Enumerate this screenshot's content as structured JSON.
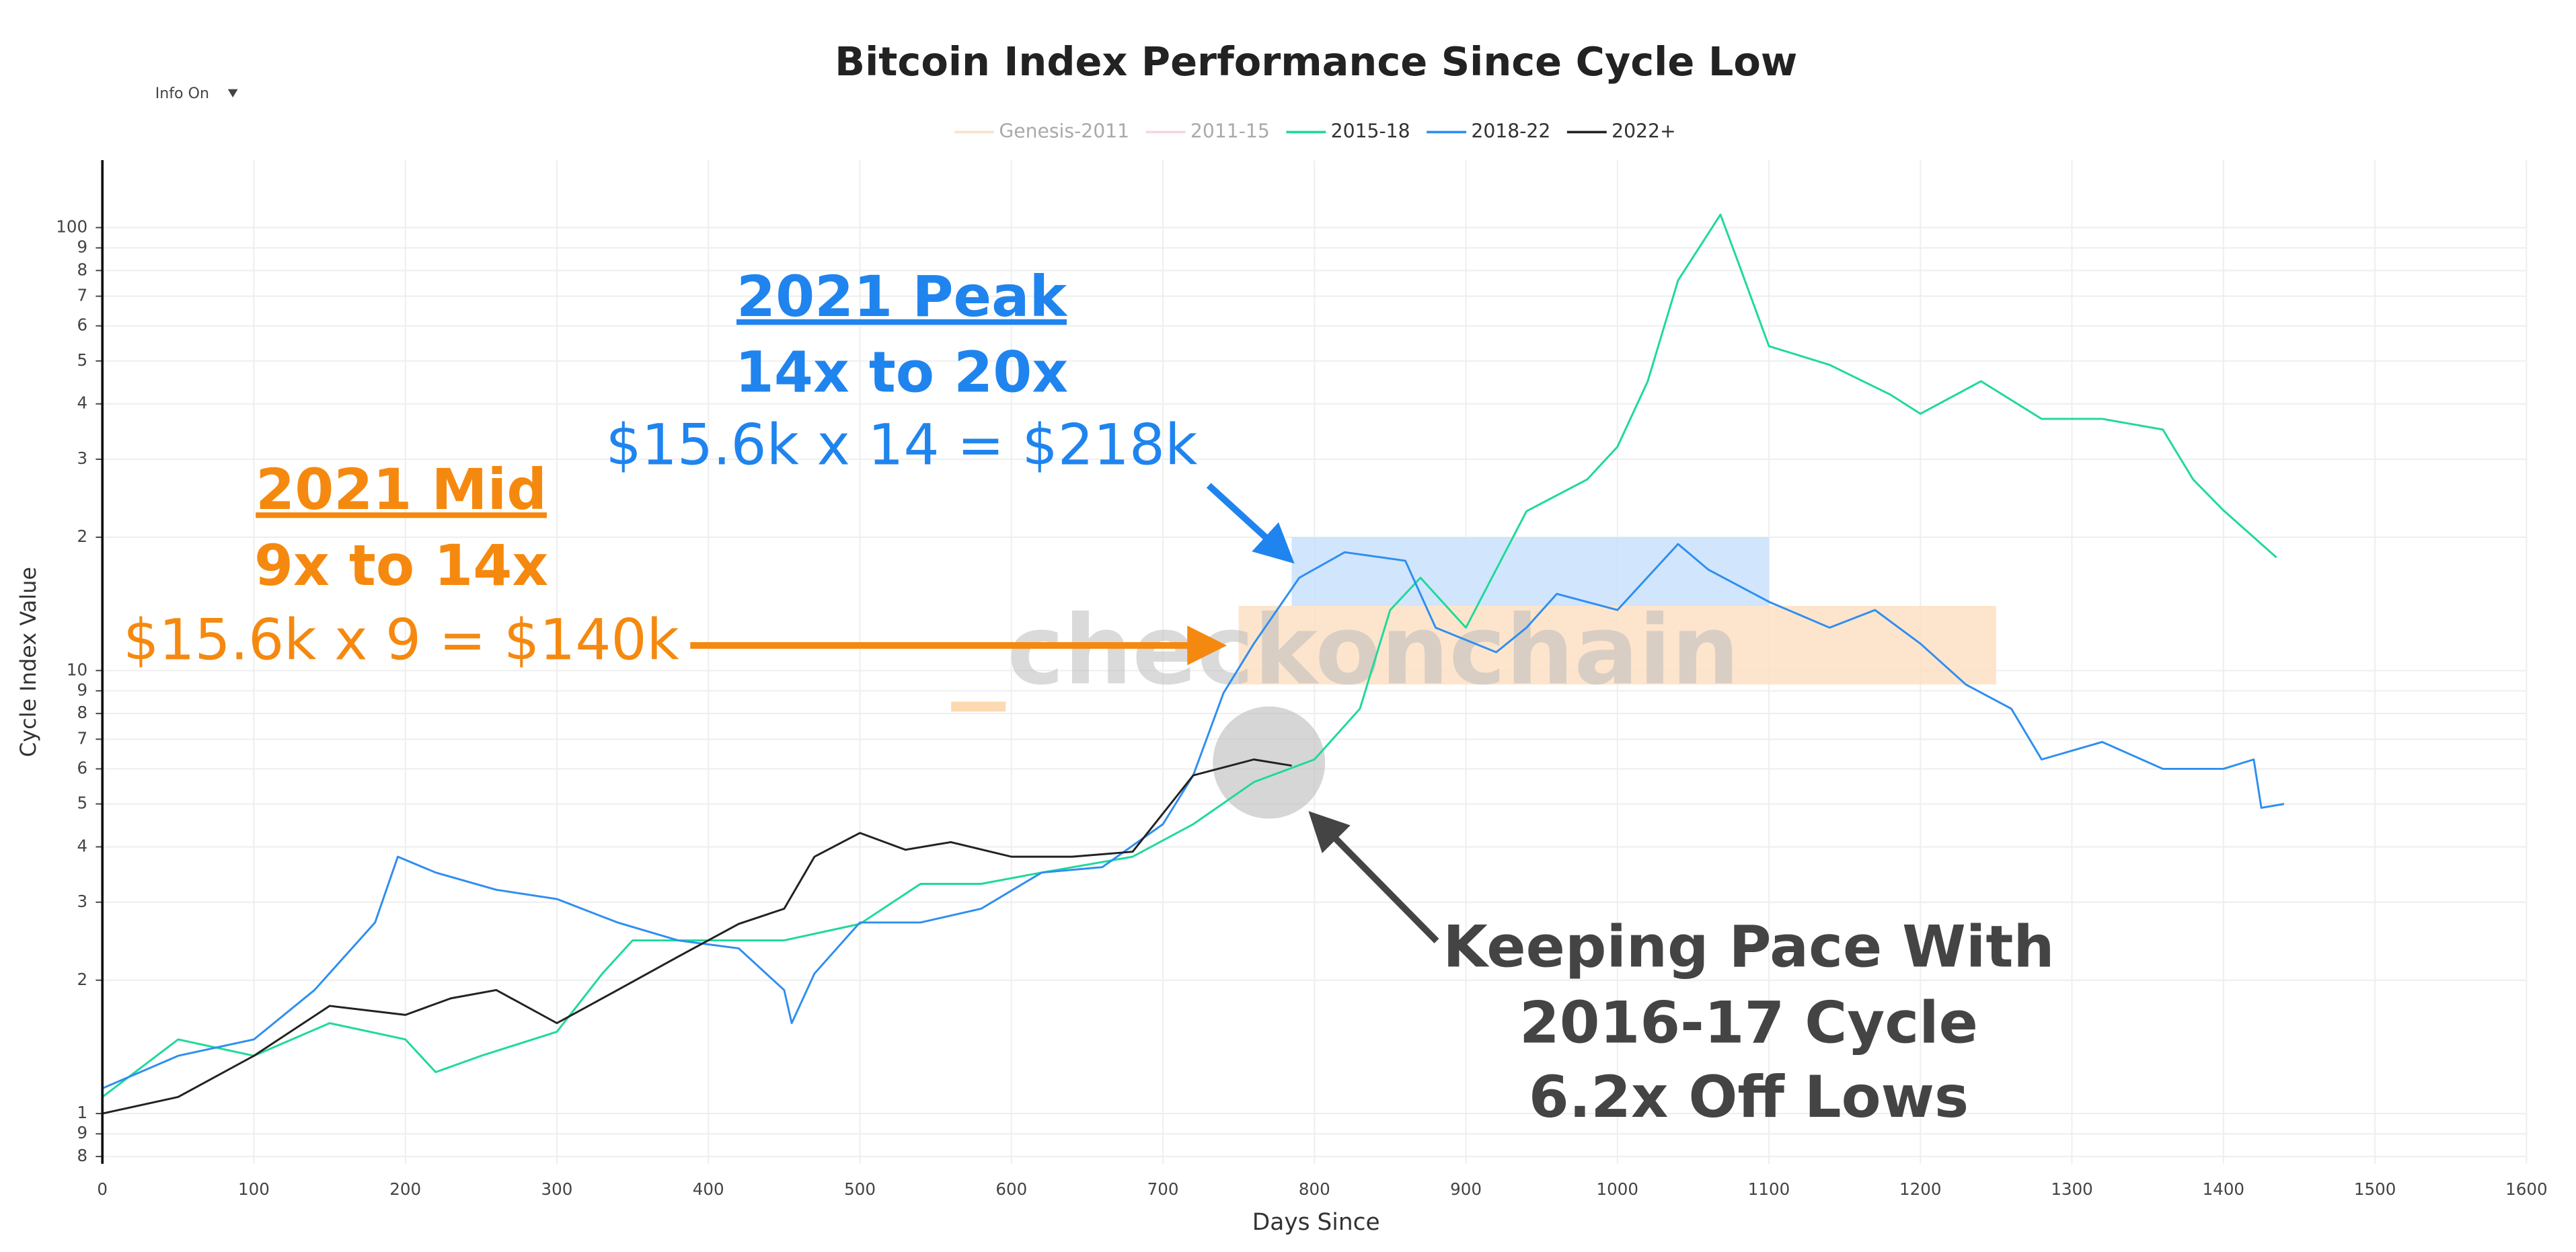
{
  "chart_data": {
    "type": "line",
    "title": "Bitcoin Index Performance Since Cycle Low",
    "control": "Info On",
    "xlabel": "Days Since",
    "ylabel": "Cycle Index Value",
    "watermark": "checkonchain",
    "log_y": true,
    "grid": true,
    "legend": "top",
    "xlim": [
      0,
      1600
    ],
    "xticks": [
      0,
      100,
      200,
      300,
      400,
      500,
      600,
      700,
      800,
      900,
      1000,
      1100,
      1200,
      1300,
      1400,
      1500,
      1600
    ],
    "ylim": [
      0.77,
      142
    ],
    "yticks": [
      {
        "value": 0.8,
        "label": "8"
      },
      {
        "value": 0.9,
        "label": "9"
      },
      1,
      2,
      3,
      4,
      5,
      6,
      7,
      8,
      9,
      10,
      {
        "value": 20,
        "label": "2"
      },
      {
        "value": 30,
        "label": "3"
      },
      {
        "value": 40,
        "label": "4"
      },
      {
        "value": 50,
        "label": "5"
      },
      {
        "value": 60,
        "label": "6"
      },
      {
        "value": 70,
        "label": "7"
      },
      {
        "value": 80,
        "label": "8"
      },
      {
        "value": 90,
        "label": "9"
      },
      100
    ],
    "series": [
      {
        "name": "Genesis-2011",
        "color": "#f5cfa6",
        "visible": false,
        "x": [],
        "values": []
      },
      {
        "name": "2011-15",
        "color": "#f2b8cc",
        "visible": false,
        "x": [],
        "values": []
      },
      {
        "name": "2015-18",
        "color": "#1ed99a",
        "visible": true,
        "x": [
          0,
          50,
          100,
          150,
          200,
          220,
          250,
          300,
          330,
          350,
          400,
          450,
          500,
          540,
          580,
          620,
          680,
          720,
          760,
          800,
          830,
          850,
          870,
          900,
          940,
          980,
          1000,
          1020,
          1040,
          1068,
          1080,
          1100,
          1140,
          1180,
          1200,
          1240,
          1280,
          1320,
          1360,
          1380,
          1400,
          1435
        ],
        "values": [
          1.09,
          1.47,
          1.35,
          1.6,
          1.47,
          1.24,
          1.35,
          1.53,
          2.07,
          2.46,
          2.46,
          2.46,
          2.68,
          3.3,
          3.3,
          3.5,
          3.8,
          4.5,
          5.6,
          6.3,
          8.2,
          13.7,
          16.2,
          12.5,
          22.9,
          27,
          32,
          45,
          76,
          107,
          83,
          54,
          49,
          42,
          38,
          45,
          37,
          37,
          35,
          27,
          23,
          18
        ]
      },
      {
        "name": "2018-22",
        "color": "#2e8ef0",
        "visible": true,
        "x": [
          0,
          50,
          100,
          140,
          180,
          195,
          220,
          260,
          300,
          340,
          380,
          420,
          450,
          455,
          470,
          500,
          540,
          580,
          620,
          660,
          700,
          720,
          740,
          760,
          790,
          820,
          860,
          880,
          920,
          940,
          960,
          1000,
          1040,
          1060,
          1100,
          1140,
          1170,
          1200,
          1230,
          1260,
          1280,
          1320,
          1360,
          1400,
          1420,
          1425,
          1440
        ],
        "values": [
          1.14,
          1.35,
          1.47,
          1.9,
          2.7,
          3.8,
          3.5,
          3.2,
          3.05,
          2.7,
          2.46,
          2.36,
          1.9,
          1.6,
          2.07,
          2.7,
          2.7,
          2.9,
          3.5,
          3.6,
          4.5,
          5.8,
          8.9,
          11.5,
          16.2,
          18.5,
          17.7,
          12.5,
          11,
          12.5,
          14.9,
          13.7,
          19.3,
          16.9,
          14.3,
          12.5,
          13.7,
          11.5,
          9.3,
          8.2,
          6.3,
          6.9,
          6,
          6,
          6.3,
          4.9,
          5
        ]
      },
      {
        "name": "2022+",
        "color": "#222222",
        "visible": true,
        "x": [
          0,
          50,
          100,
          150,
          200,
          230,
          260,
          300,
          340,
          380,
          420,
          450,
          470,
          500,
          530,
          560,
          600,
          640,
          680,
          720,
          760,
          785
        ],
        "values": [
          1,
          1.09,
          1.35,
          1.75,
          1.67,
          1.82,
          1.9,
          1.6,
          1.9,
          2.26,
          2.68,
          2.9,
          3.8,
          4.3,
          3.94,
          4.1,
          3.8,
          3.8,
          3.9,
          5.8,
          6.3,
          6.1
        ]
      }
    ],
    "bands": [
      {
        "x": [
          785,
          1100
        ],
        "y": [
          14,
          20
        ],
        "color": "#c9e0fb"
      },
      {
        "x": [
          750,
          1250
        ],
        "y": [
          9.3,
          14
        ],
        "color": "#fde1c4"
      }
    ],
    "highlight": {
      "x": 770,
      "y": 6.2
    },
    "annotations": [
      {
        "lines": [
          "2021 Peak",
          "14x to 20x",
          "$15.6k x 14 = $218k"
        ],
        "color": "#1f84ee"
      },
      {
        "lines": [
          "2021 Mid",
          "9x to 14x",
          "$15.6k x 9 = $140k"
        ],
        "color": "#f5890f"
      },
      {
        "lines": [
          "Keeping Pace With",
          "2016-17 Cycle",
          "6.2x Off Lows"
        ],
        "color": "#444444"
      }
    ]
  }
}
